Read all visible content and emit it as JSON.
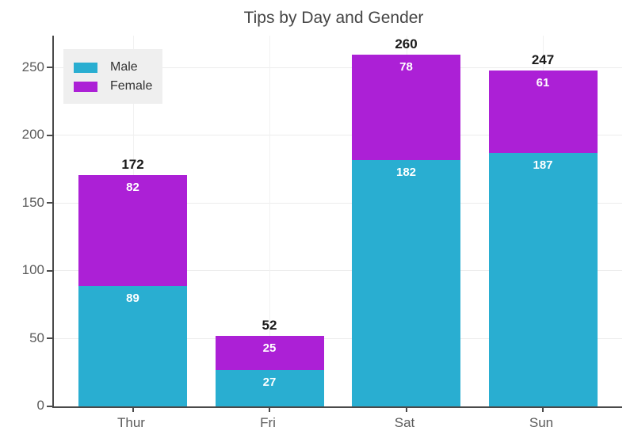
{
  "chart_data": {
    "type": "bar",
    "stacked": true,
    "title": "Tips by Day and Gender",
    "categories": [
      "Thur",
      "Fri",
      "Sat",
      "Sun"
    ],
    "series": [
      {
        "name": "Male",
        "color": "#29AED1",
        "values": [
          89,
          27,
          182,
          187
        ]
      },
      {
        "name": "Female",
        "color": "#AC20D6",
        "values": [
          82,
          25,
          78,
          61
        ]
      }
    ],
    "totals": [
      172,
      52,
      260,
      247
    ],
    "xlabel": "",
    "ylabel": "",
    "yticks": [
      0,
      50,
      100,
      150,
      200,
      250
    ],
    "ylim": [
      0,
      274
    ],
    "grid": true,
    "legend_position": "top-left-inside",
    "colors": {
      "axis": "#4a4a4a",
      "tick_label": "#5b5b5b",
      "h_grid": "#ececec",
      "v_grid": "#f1f1f1",
      "title": "#454545",
      "total_label": "#1a1a1a",
      "inside_label": "#ffffff",
      "legend_bg": "#efefef",
      "background": "#ffffff"
    }
  }
}
